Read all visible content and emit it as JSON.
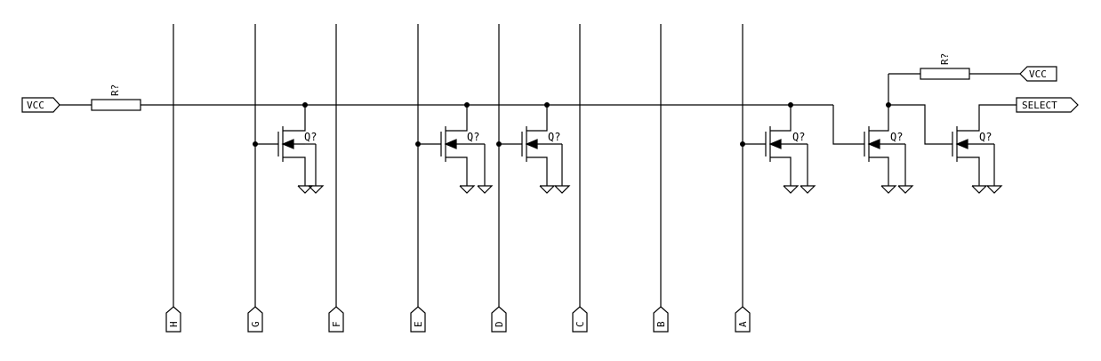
{
  "ports": {
    "vcc_left": "VCC",
    "vcc_right": "VCC",
    "select": "SELECT"
  },
  "bus": [
    "H",
    "G",
    "F",
    "E",
    "D",
    "C",
    "B",
    "A"
  ],
  "resistors": {
    "r_left": "R?",
    "r_right": "R?"
  },
  "transistors": [
    "Q?",
    "Q?",
    "Q?",
    "Q?",
    "Q?",
    "Q?"
  ]
}
